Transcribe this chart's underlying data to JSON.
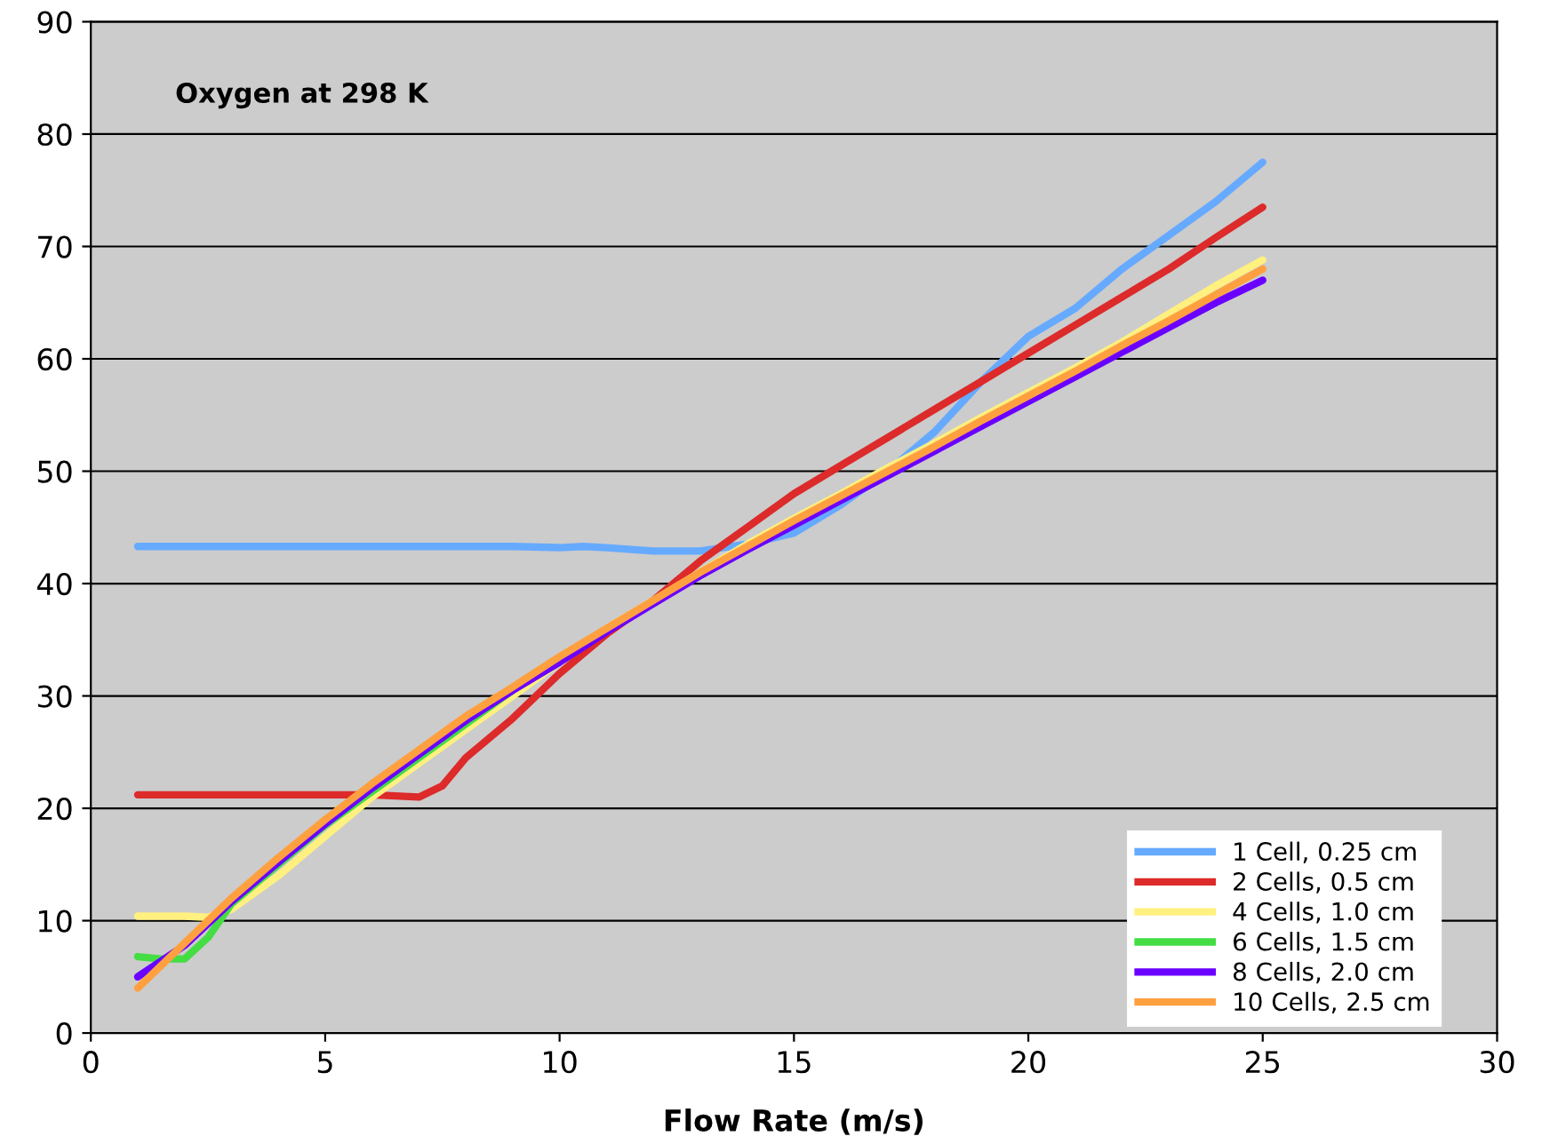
{
  "chart_data": {
    "type": "line",
    "xlabel": "Flow Rate (m/s)",
    "annotations": [
      "Oxygen at 298 K"
    ],
    "xlim": [
      0,
      30
    ],
    "xticks": [
      0,
      5,
      10,
      15,
      20,
      25,
      30
    ],
    "ylim": [
      0,
      90
    ],
    "yticks": [
      0,
      10,
      20,
      30,
      40,
      50,
      60,
      70,
      80,
      90
    ],
    "grid": "y",
    "legend": "bottom right",
    "marker": "none",
    "line_style": "solid",
    "series": [
      {
        "name": "1 Cell, 0.25 cm",
        "color": "#66aaff",
        "x": [
          1,
          3,
          5,
          7,
          9,
          10,
          10.5,
          11,
          12,
          13,
          14,
          15,
          16,
          17,
          18,
          19,
          20,
          21,
          22,
          23,
          24,
          25
        ],
        "values": [
          43.3,
          43.3,
          43.3,
          43.3,
          43.3,
          43.2,
          43.3,
          43.2,
          42.9,
          42.9,
          43.5,
          44.5,
          47,
          50,
          53.5,
          58,
          62,
          64.5,
          68,
          71,
          74,
          77.5
        ]
      },
      {
        "name": "2 Cells, 0.5 cm",
        "color": "#dd2a2a",
        "x": [
          1,
          3,
          5,
          6,
          6.5,
          7,
          7.5,
          8,
          9,
          10,
          11,
          12,
          13,
          14,
          15,
          16,
          17,
          18,
          19,
          20,
          21,
          22,
          23,
          24,
          25
        ],
        "values": [
          21.2,
          21.2,
          21.2,
          21.2,
          21.1,
          21,
          22,
          24.5,
          28,
          32,
          35.5,
          38.5,
          42,
          45,
          48,
          50.5,
          53,
          55.5,
          58,
          60.5,
          63,
          65.5,
          68,
          70.8,
          73.5
        ]
      },
      {
        "name": "4 Cells, 1.0 cm",
        "color": "#fff080",
        "x": [
          1,
          2,
          2.5,
          3,
          4,
          5,
          6,
          7,
          8,
          9,
          10,
          11,
          12,
          13,
          14,
          15,
          16,
          17,
          18,
          19,
          20,
          21,
          22,
          23,
          24,
          25
        ],
        "values": [
          10.4,
          10.4,
          10.3,
          11,
          14,
          17.5,
          21,
          24,
          27,
          30,
          33,
          36,
          38.5,
          41,
          43.5,
          45.8,
          48,
          50.3,
          52.5,
          54.8,
          57,
          59.2,
          61.5,
          64,
          66.5,
          68.8
        ]
      },
      {
        "name": "6 Cells, 1.5 cm",
        "color": "#44dd44",
        "x": [
          1,
          1.5,
          2,
          2.5,
          3,
          4,
          5,
          6,
          7,
          8,
          9
        ],
        "values": [
          6.8,
          6.6,
          6.6,
          8.5,
          11.5,
          15,
          18.5,
          21.5,
          24.5,
          27.5,
          30.5
        ]
      },
      {
        "name": "8 Cells, 2.0 cm",
        "color": "#6a00ff",
        "x": [
          1,
          2,
          3,
          4,
          5,
          6,
          7,
          8,
          9,
          10,
          11,
          12,
          13,
          14,
          15,
          16,
          17,
          18,
          19,
          20,
          21,
          22,
          23,
          24,
          25
        ],
        "values": [
          5,
          7.8,
          11.7,
          15.2,
          18.6,
          21.8,
          24.8,
          27.8,
          30.5,
          33,
          35.7,
          38.2,
          40.7,
          43,
          45.2,
          47.4,
          49.6,
          51.8,
          54,
          56.2,
          58.4,
          60.6,
          62.8,
          65,
          67
        ]
      },
      {
        "name": "10 Cells, 2.5 cm",
        "color": "#ffa040",
        "x": [
          1,
          2,
          3,
          4,
          5,
          6,
          7,
          8,
          9,
          10,
          11,
          12,
          13,
          14,
          15,
          16,
          17,
          18,
          19,
          20,
          21,
          22,
          23,
          24,
          25
        ],
        "values": [
          4,
          8,
          12,
          15.6,
          19,
          22.2,
          25.2,
          28.2,
          30.8,
          33.5,
          36,
          38.5,
          41,
          43.3,
          45.6,
          47.8,
          50,
          52.2,
          54.5,
          56.7,
          58.9,
          61.2,
          63.4,
          65.7,
          68
        ]
      }
    ]
  }
}
